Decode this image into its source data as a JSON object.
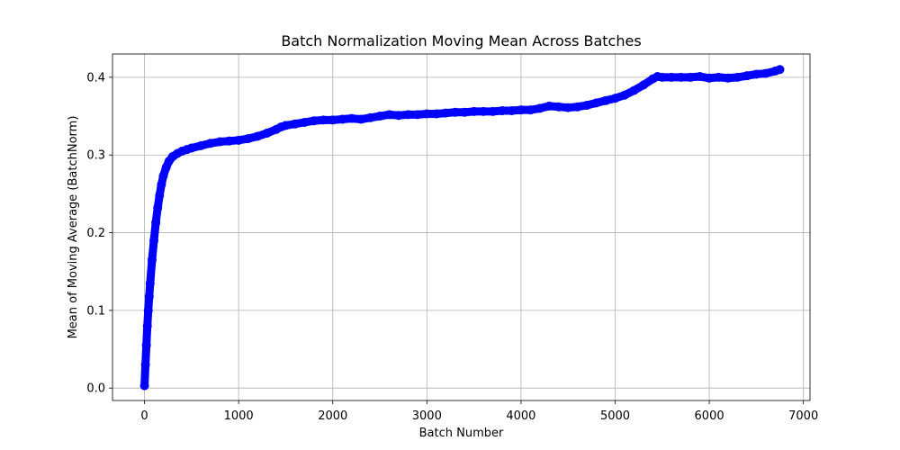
{
  "chart_data": {
    "type": "line",
    "title": "Batch Normalization Moving Mean Across Batches",
    "xlabel": "Batch Number",
    "ylabel": "Mean of Moving Average (BatchNorm)",
    "xlim": [
      -340,
      7070
    ],
    "ylim": [
      -0.016,
      0.43
    ],
    "xticks": [
      0,
      1000,
      2000,
      3000,
      4000,
      5000,
      6000,
      7000
    ],
    "xtick_labels": [
      "0",
      "1000",
      "2000",
      "3000",
      "4000",
      "5000",
      "6000",
      "7000"
    ],
    "yticks": [
      0.0,
      0.1,
      0.2,
      0.3,
      0.4
    ],
    "ytick_labels": [
      "0.0",
      "0.1",
      "0.2",
      "0.3",
      "0.4"
    ],
    "grid": true,
    "marker": "circle",
    "color": "#0000ff",
    "series": [
      {
        "x": [
          0,
          10,
          20,
          30,
          40,
          50,
          60,
          80,
          100,
          120,
          140,
          160,
          180,
          200,
          230,
          260,
          300,
          350,
          400,
          450,
          500,
          600,
          700,
          800,
          900,
          1000,
          1100,
          1200,
          1300,
          1400,
          1450,
          1500,
          1600,
          1700,
          1800,
          1900,
          2000,
          2100,
          2200,
          2300,
          2400,
          2500,
          2600,
          2700,
          2800,
          2900,
          3000,
          3100,
          3200,
          3300,
          3400,
          3500,
          3600,
          3700,
          3800,
          3900,
          4000,
          4100,
          4200,
          4300,
          4400,
          4500,
          4600,
          4700,
          4800,
          4900,
          5000,
          5100,
          5200,
          5300,
          5400,
          5450,
          5500,
          5600,
          5700,
          5800,
          5900,
          6000,
          6100,
          6200,
          6300,
          6400,
          6500,
          6600,
          6700,
          6750
        ],
        "y": [
          0.003,
          0.03,
          0.055,
          0.08,
          0.1,
          0.118,
          0.135,
          0.165,
          0.19,
          0.213,
          0.232,
          0.248,
          0.262,
          0.273,
          0.284,
          0.292,
          0.298,
          0.302,
          0.305,
          0.307,
          0.309,
          0.312,
          0.315,
          0.317,
          0.318,
          0.319,
          0.321,
          0.324,
          0.328,
          0.333,
          0.336,
          0.338,
          0.34,
          0.342,
          0.344,
          0.345,
          0.345,
          0.346,
          0.347,
          0.346,
          0.348,
          0.35,
          0.352,
          0.351,
          0.352,
          0.352,
          0.353,
          0.353,
          0.354,
          0.355,
          0.355,
          0.356,
          0.356,
          0.356,
          0.357,
          0.357,
          0.358,
          0.358,
          0.36,
          0.363,
          0.362,
          0.361,
          0.362,
          0.364,
          0.367,
          0.37,
          0.373,
          0.377,
          0.383,
          0.39,
          0.398,
          0.401,
          0.4,
          0.4,
          0.4,
          0.4,
          0.401,
          0.399,
          0.4,
          0.399,
          0.4,
          0.402,
          0.404,
          0.405,
          0.408,
          0.41
        ]
      }
    ]
  }
}
